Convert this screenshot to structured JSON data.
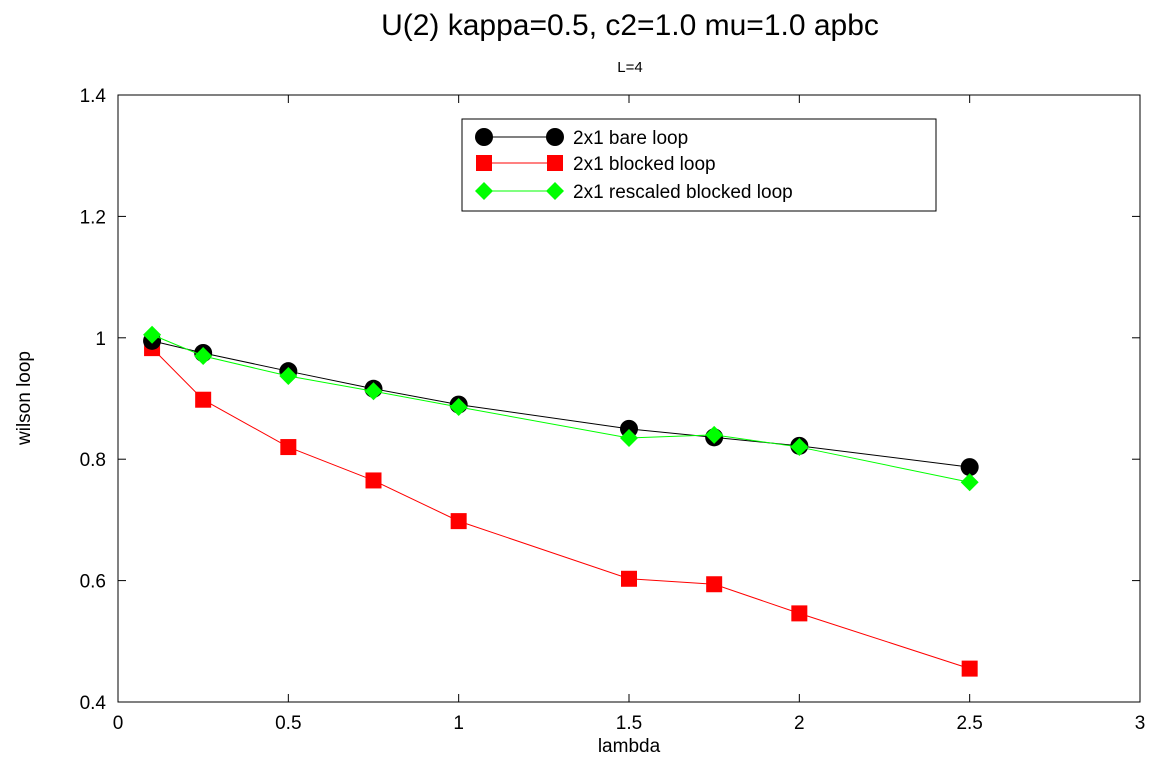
{
  "chart_data": {
    "type": "line",
    "title": "U(2) kappa=0.5, c2=1.0 mu=1.0 apbc",
    "subtitle": "L=4",
    "xlabel": "lambda",
    "ylabel": "wilson loop",
    "xlim": [
      0,
      3
    ],
    "ylim": [
      0.4,
      1.4
    ],
    "xticks": [
      0,
      0.5,
      1,
      1.5,
      2,
      2.5,
      3
    ],
    "yticks": [
      0.4,
      0.6,
      0.8,
      1,
      1.2,
      1.4
    ],
    "xtick_labels": [
      "0",
      "0.5",
      "1",
      "1.5",
      "2",
      "2.5",
      "3"
    ],
    "ytick_labels": [
      "0.4",
      "0.6",
      "0.8",
      "1",
      "1.2",
      "1.4"
    ],
    "grid": false,
    "legend_position": "top-right",
    "series": [
      {
        "name": "2x1 bare loop",
        "color": "#000000",
        "marker": "circle",
        "x": [
          0.1,
          0.25,
          0.5,
          0.75,
          1.0,
          1.5,
          1.75,
          2.0,
          2.5
        ],
        "y": [
          0.995,
          0.975,
          0.945,
          0.916,
          0.89,
          0.85,
          0.836,
          0.822,
          0.787
        ]
      },
      {
        "name": "2x1 blocked loop",
        "color": "#ff0000",
        "marker": "square",
        "x": [
          0.1,
          0.25,
          0.5,
          0.75,
          1.0,
          1.5,
          1.75,
          2.0,
          2.5
        ],
        "y": [
          0.983,
          0.898,
          0.82,
          0.765,
          0.698,
          0.603,
          0.594,
          0.546,
          0.455
        ]
      },
      {
        "name": "2x1 rescaled blocked loop",
        "color": "#00ff00",
        "marker": "diamond",
        "x": [
          0.1,
          0.25,
          0.5,
          0.75,
          1.0,
          1.5,
          1.75,
          2.0,
          2.5
        ],
        "y": [
          1.005,
          0.97,
          0.937,
          0.912,
          0.886,
          0.835,
          0.84,
          0.82,
          0.762
        ]
      }
    ]
  }
}
